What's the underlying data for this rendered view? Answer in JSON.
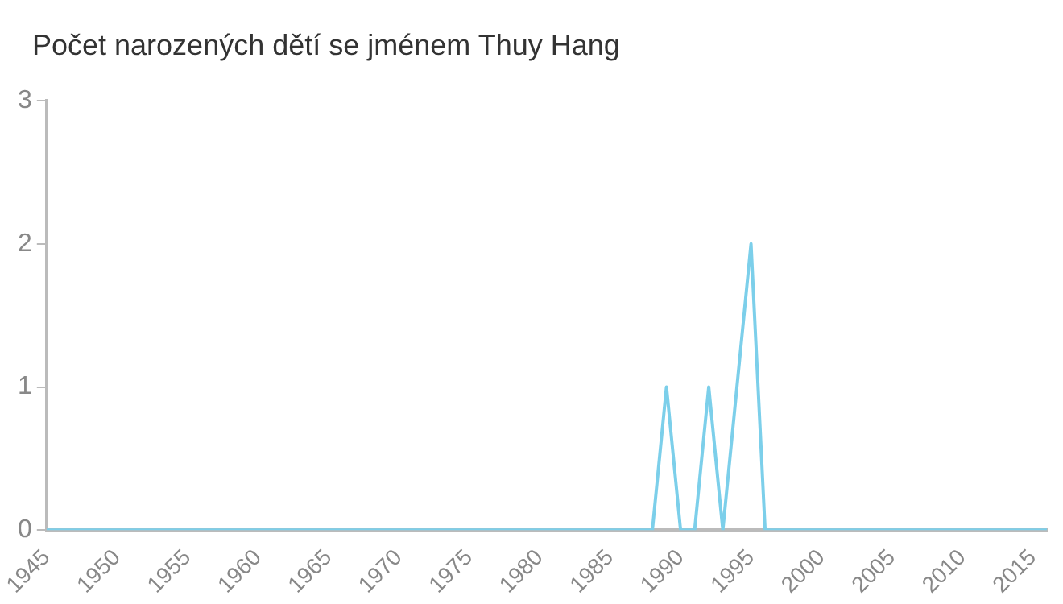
{
  "chart_data": {
    "type": "line",
    "title": "Počet narozených dětí se jménem Thuy Hang",
    "x": [
      1945,
      1988,
      1989,
      1990,
      1991,
      1992,
      1993,
      1994,
      1995,
      1996,
      2016
    ],
    "series": [
      {
        "color": "#7ccfea",
        "values": [
          0,
          0,
          1,
          0,
          0,
          1,
          0,
          1,
          2,
          0,
          0
        ]
      }
    ],
    "xlim": [
      1945,
      2016
    ],
    "xticks": [
      1945,
      1950,
      1955,
      1960,
      1965,
      1970,
      1975,
      1980,
      1985,
      1990,
      1995,
      2000,
      2005,
      2010,
      2015
    ],
    "ylim": [
      0,
      3
    ],
    "yticks": [
      0,
      1,
      2,
      3
    ],
    "grid": false,
    "legend": false,
    "marker": "none",
    "line_style": "solid"
  }
}
